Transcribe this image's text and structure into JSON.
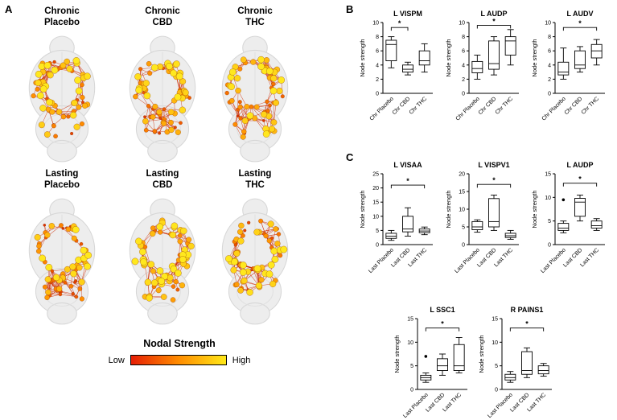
{
  "panels": {
    "a": "A",
    "b": "B",
    "c": "C"
  },
  "panel_a": {
    "brains": [
      {
        "line1": "Chronic",
        "line2": "Placebo"
      },
      {
        "line1": "Chronic",
        "line2": "CBD"
      },
      {
        "line1": "Chronic",
        "line2": "THC"
      },
      {
        "line1": "Lasting",
        "line2": "Placebo"
      },
      {
        "line1": "Lasting",
        "line2": "CBD"
      },
      {
        "line1": "Lasting",
        "line2": "THC"
      }
    ],
    "colorbar": {
      "title": "Nodal Strength",
      "low": "Low",
      "high": "High",
      "low_color": "#e61e04",
      "mid_color": "#ff8c00",
      "high_color": "#ffe818"
    }
  },
  "chart_data": [
    {
      "type": "box",
      "panel": "B",
      "title": "L VISPM",
      "ylabel": "Node strength",
      "ylim": [
        0,
        10
      ],
      "yticks": [
        0,
        2,
        4,
        6,
        8,
        10
      ],
      "categories": [
        "Chr Placebo",
        "Chr CBD",
        "Chr THC"
      ],
      "boxes": [
        {
          "min": 3.6,
          "q1": 4.6,
          "median": 6.9,
          "q3": 7.5,
          "max": 8.0
        },
        {
          "min": 2.6,
          "q1": 3.0,
          "median": 3.4,
          "q3": 4.0,
          "max": 4.4
        },
        {
          "min": 3.0,
          "q1": 4.0,
          "median": 4.6,
          "q3": 6.0,
          "max": 7.0
        }
      ],
      "outliers": [
        [],
        [],
        []
      ],
      "significance": {
        "from": 0,
        "to": 1,
        "label": "*",
        "y": 9.3
      }
    },
    {
      "type": "box",
      "panel": "B",
      "title": "L AUDP",
      "ylabel": "Node strength",
      "ylim": [
        0,
        10
      ],
      "yticks": [
        0,
        2,
        4,
        6,
        8,
        10
      ],
      "categories": [
        "Chr Placebo",
        "Chr CBD",
        "Chr THC"
      ],
      "boxes": [
        {
          "min": 2.0,
          "q1": 2.9,
          "median": 3.5,
          "q3": 4.5,
          "max": 5.4
        },
        {
          "min": 2.6,
          "q1": 3.4,
          "median": 4.2,
          "q3": 7.4,
          "max": 8.0
        },
        {
          "min": 4.0,
          "q1": 5.4,
          "median": 7.4,
          "q3": 8.0,
          "max": 9.0
        }
      ],
      "outliers": [
        [],
        [],
        []
      ],
      "significance": {
        "from": 0,
        "to": 2,
        "label": "*",
        "y": 9.6
      }
    },
    {
      "type": "box",
      "panel": "B",
      "title": "L AUDV",
      "ylabel": "Node strength",
      "ylim": [
        0,
        10
      ],
      "yticks": [
        0,
        2,
        4,
        6,
        8,
        10
      ],
      "categories": [
        "Chr Placebo",
        "Chr CBD",
        "Chr THC"
      ],
      "boxes": [
        {
          "min": 2.0,
          "q1": 2.6,
          "median": 3.0,
          "q3": 4.4,
          "max": 6.4
        },
        {
          "min": 3.0,
          "q1": 3.5,
          "median": 4.0,
          "q3": 6.0,
          "max": 6.6
        },
        {
          "min": 4.0,
          "q1": 5.0,
          "median": 6.0,
          "q3": 6.9,
          "max": 7.6
        }
      ],
      "outliers": [
        [],
        [],
        []
      ],
      "significance": {
        "from": 0,
        "to": 2,
        "label": "*",
        "y": 9.3
      }
    },
    {
      "type": "box",
      "panel": "C",
      "title": "L VISAA",
      "ylabel": "Node strength",
      "ylim": [
        0,
        25
      ],
      "yticks": [
        0,
        5,
        10,
        15,
        20,
        25
      ],
      "categories": [
        "Last Placebo",
        "Last CBD",
        "Last THC"
      ],
      "boxes": [
        {
          "min": 1.5,
          "q1": 2.2,
          "median": 3.0,
          "q3": 4.0,
          "max": 5.0
        },
        {
          "min": 3.0,
          "q1": 4.5,
          "median": 5.5,
          "q3": 10.0,
          "max": 13.0
        },
        {
          "min": 3.5,
          "q1": 4.2,
          "median": 4.8,
          "q3": 5.5,
          "max": 6.2
        }
      ],
      "outliers": [
        [],
        [],
        []
      ],
      "significance": {
        "from": 0,
        "to": 2,
        "label": "*",
        "y": 21
      }
    },
    {
      "type": "box",
      "panel": "C",
      "title": "L VISPV1",
      "ylabel": "Node strength",
      "ylim": [
        0,
        20
      ],
      "yticks": [
        0,
        5,
        10,
        15,
        20
      ],
      "categories": [
        "Last Placebo",
        "Last CBD",
        "Last THC"
      ],
      "boxes": [
        {
          "min": 3.5,
          "q1": 4.2,
          "median": 5.0,
          "q3": 6.5,
          "max": 7.0
        },
        {
          "min": 4.0,
          "q1": 5.0,
          "median": 6.5,
          "q3": 13.0,
          "max": 14.0
        },
        {
          "min": 1.5,
          "q1": 2.0,
          "median": 2.5,
          "q3": 3.2,
          "max": 4.0
        }
      ],
      "outliers": [
        [],
        [],
        []
      ],
      "significance": {
        "from": 0,
        "to": 2,
        "label": "*",
        "y": 17
      }
    },
    {
      "type": "box",
      "panel": "C",
      "title": "L AUDP",
      "ylabel": "Node strength",
      "ylim": [
        0,
        15
      ],
      "yticks": [
        0,
        5,
        10,
        15
      ],
      "categories": [
        "Last Placebo",
        "Last CBD",
        "Last THC"
      ],
      "boxes": [
        {
          "min": 2.5,
          "q1": 3.0,
          "median": 3.5,
          "q3": 4.5,
          "max": 5.0
        },
        {
          "min": 5.0,
          "q1": 6.0,
          "median": 9.0,
          "q3": 9.8,
          "max": 10.5
        },
        {
          "min": 3.0,
          "q1": 3.5,
          "median": 4.0,
          "q3": 5.0,
          "max": 5.5
        }
      ],
      "outliers": [
        [
          9.5
        ],
        [],
        []
      ],
      "significance": {
        "from": 0,
        "to": 2,
        "label": "*",
        "y": 13
      }
    },
    {
      "type": "box",
      "panel": "C",
      "title": "L SSC1",
      "ylabel": "Node strength",
      "ylim": [
        0,
        15
      ],
      "yticks": [
        0,
        5,
        10,
        15
      ],
      "categories": [
        "Last Placebo",
        "Last CBD",
        "Last THC"
      ],
      "boxes": [
        {
          "min": 1.5,
          "q1": 2.0,
          "median": 2.5,
          "q3": 3.0,
          "max": 3.5
        },
        {
          "min": 3.0,
          "q1": 4.0,
          "median": 5.0,
          "q3": 6.5,
          "max": 7.5
        },
        {
          "min": 3.5,
          "q1": 4.0,
          "median": 5.0,
          "q3": 9.5,
          "max": 11.0
        }
      ],
      "outliers": [
        [
          7.0
        ],
        [],
        []
      ],
      "significance": {
        "from": 0,
        "to": 2,
        "label": "*",
        "y": 13
      }
    },
    {
      "type": "box",
      "panel": "C",
      "title": "R PAINS1",
      "ylabel": "Node strength",
      "ylim": [
        0,
        15
      ],
      "yticks": [
        0,
        5,
        10,
        15
      ],
      "categories": [
        "Last Placebo",
        "Last CBD",
        "Last THC"
      ],
      "boxes": [
        {
          "min": 1.5,
          "q1": 2.0,
          "median": 2.5,
          "q3": 3.2,
          "max": 3.8
        },
        {
          "min": 2.5,
          "q1": 3.2,
          "median": 4.0,
          "q3": 8.0,
          "max": 8.8
        },
        {
          "min": 2.8,
          "q1": 3.3,
          "median": 4.0,
          "q3": 5.0,
          "max": 5.5
        }
      ],
      "outliers": [
        [],
        [],
        []
      ],
      "significance": {
        "from": 0,
        "to": 2,
        "label": "*",
        "y": 13
      }
    }
  ]
}
